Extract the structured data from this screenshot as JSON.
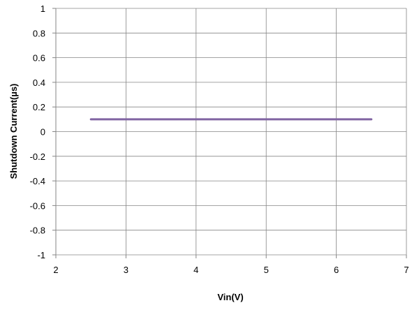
{
  "chart_data": {
    "type": "line",
    "title": "",
    "xlabel": "Vin(V)",
    "ylabel": "Shutdown Current(µs)",
    "xlim": [
      2,
      7
    ],
    "ylim": [
      -1,
      1
    ],
    "x_ticks": [
      "2",
      "3",
      "4",
      "5",
      "6",
      "7"
    ],
    "y_ticks": [
      "1",
      "0.8",
      "0.6",
      "0.4",
      "0.2",
      "0",
      "-0.2",
      "-0.4",
      "-0.6",
      "-0.8",
      "-1"
    ],
    "grid": true,
    "legend": "none",
    "series": [
      {
        "color": "#8064a2",
        "x": [
          2.5,
          6.5
        ],
        "y": [
          0.1,
          0.1
        ]
      }
    ]
  }
}
